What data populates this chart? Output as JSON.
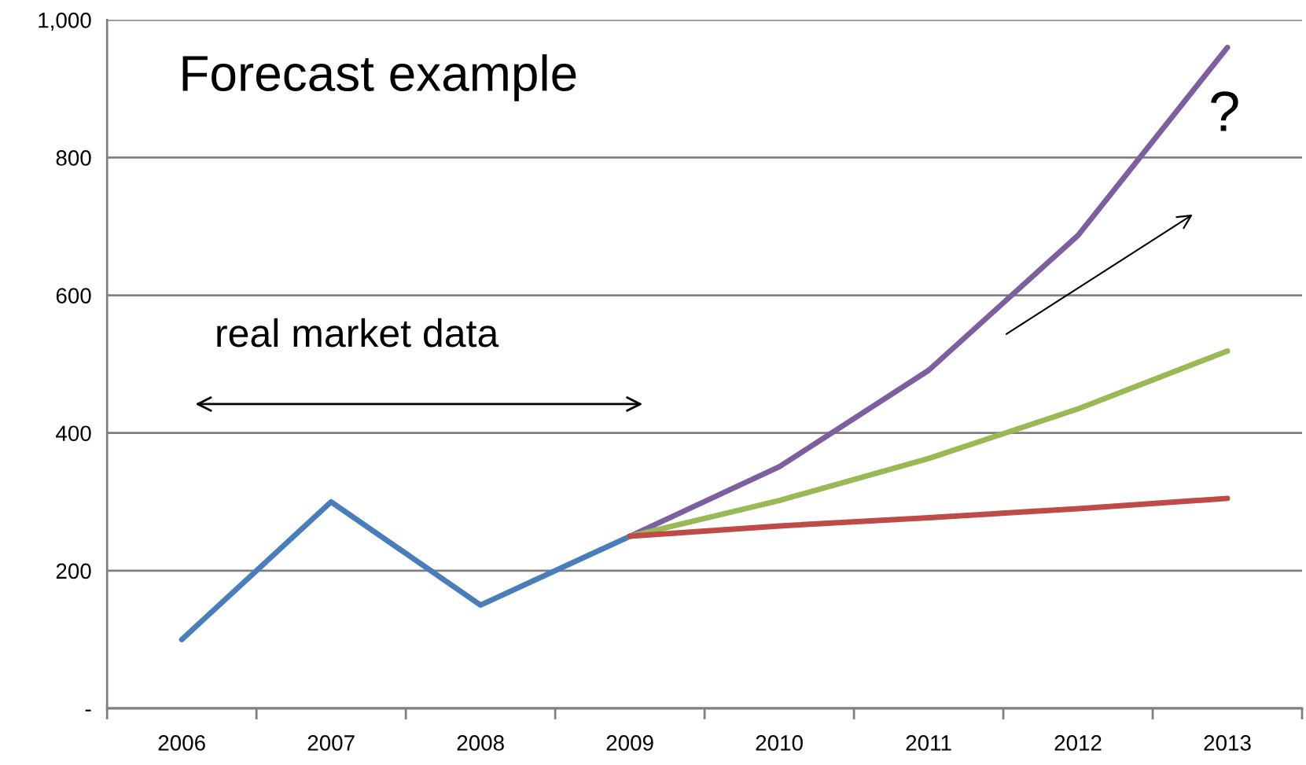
{
  "chart_data": {
    "type": "line",
    "title": "Forecast example",
    "categories": [
      "2006",
      "2007",
      "2008",
      "2009",
      "2010",
      "2011",
      "2012",
      "2013"
    ],
    "series": [
      {
        "color": "#4a7ebb",
        "values": [
          100,
          300,
          150,
          250,
          null,
          null,
          null,
          null
        ]
      },
      {
        "color": "#7d5fa0",
        "values": [
          null,
          null,
          null,
          250,
          351,
          491,
          687,
          960
        ]
      },
      {
        "color": "#98b954",
        "values": [
          null,
          null,
          null,
          250,
          302,
          363,
          435,
          519
        ]
      },
      {
        "color": "#be4b48",
        "values": [
          null,
          null,
          null,
          250,
          265,
          277,
          290,
          305
        ]
      }
    ],
    "ylim": [
      0,
      1000
    ],
    "yticks": [
      {
        "value": 0,
        "label": "-"
      },
      200,
      400,
      600,
      800,
      {
        "value": 1000,
        "label": "1,000"
      }
    ],
    "grid": "y",
    "legend": false,
    "marker": "none",
    "line_style": "solid",
    "annotations": [
      "real market data",
      "?"
    ]
  }
}
